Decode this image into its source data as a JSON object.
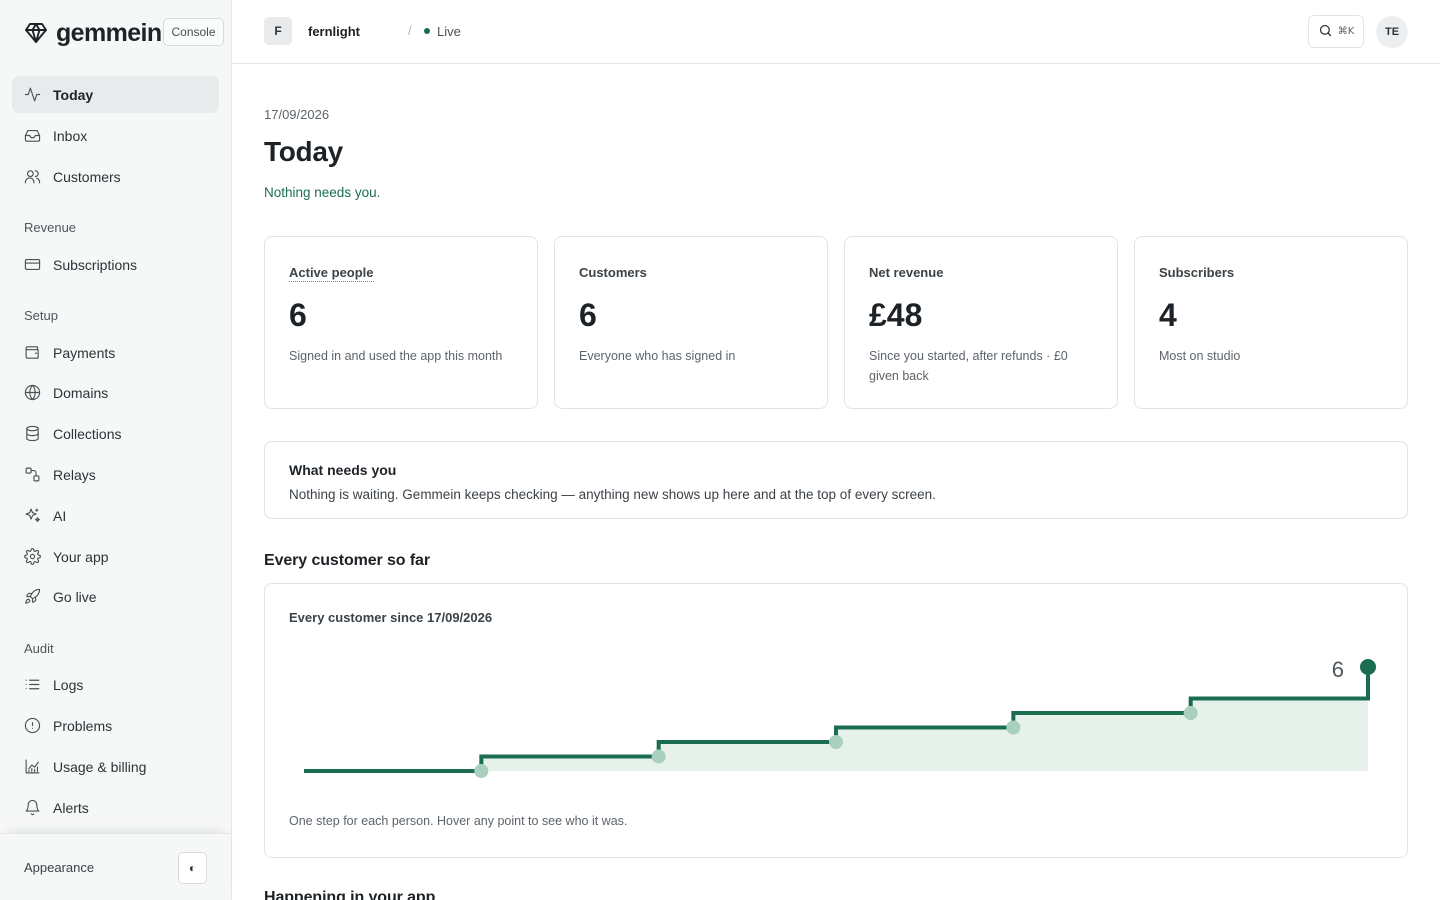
{
  "brand": {
    "name": "gemmein",
    "badge": "Console"
  },
  "sidebar": {
    "primary": [
      {
        "label": "Today",
        "icon": "activity-icon",
        "active": true
      },
      {
        "label": "Inbox",
        "icon": "inbox-icon"
      },
      {
        "label": "Customers",
        "icon": "users-icon"
      }
    ],
    "sections": [
      {
        "label": "Revenue",
        "items": [
          {
            "label": "Subscriptions",
            "icon": "credit-card-icon"
          }
        ]
      },
      {
        "label": "Setup",
        "items": [
          {
            "label": "Payments",
            "icon": "wallet-icon"
          },
          {
            "label": "Domains",
            "icon": "globe-icon"
          },
          {
            "label": "Collections",
            "icon": "database-icon"
          },
          {
            "label": "Relays",
            "icon": "route-icon"
          },
          {
            "label": "AI",
            "icon": "sparkles-icon"
          },
          {
            "label": "Your app",
            "icon": "gear-icon"
          },
          {
            "label": "Go live",
            "icon": "rocket-icon"
          }
        ]
      },
      {
        "label": "Audit",
        "items": [
          {
            "label": "Logs",
            "icon": "list-icon"
          },
          {
            "label": "Problems",
            "icon": "alert-circle-icon"
          },
          {
            "label": "Usage & billing",
            "icon": "chart-icon"
          },
          {
            "label": "Alerts",
            "icon": "bell-icon"
          }
        ]
      }
    ],
    "footer": {
      "appearance_label": "Appearance",
      "toggle_glyph": "◐"
    }
  },
  "topbar": {
    "workspace_initial": "F",
    "workspace_name": "fernlight",
    "separator": "/",
    "status": "Live",
    "search_shortcut": "⌘K",
    "user_initials": "TE"
  },
  "page": {
    "date": "17/09/2026",
    "title": "Today",
    "status_line": "Nothing needs you."
  },
  "stats": [
    {
      "label": "Active people",
      "value": "6",
      "desc": "Signed in and used the app this month"
    },
    {
      "label": "Customers",
      "value": "6",
      "desc": "Everyone who has signed in"
    },
    {
      "label": "Net revenue",
      "value": "£48",
      "desc": "Since you started, after refunds · £0 given back"
    },
    {
      "label": "Subscribers",
      "value": "4",
      "desc": "Most on studio"
    }
  ],
  "needs": {
    "title": "What needs you",
    "text": "Nothing is waiting. Gemmein keeps checking — anything new shows up here and at the top of every screen."
  },
  "sections": {
    "customers_heading": "Every customer so far",
    "next_heading": "Happening in your app"
  },
  "chart": {
    "title": "Every customer since 17/09/2026",
    "caption": "One step for each person. Hover any point to see who it was.",
    "end_label": "6"
  },
  "colors": {
    "accent": "#1a6e4f",
    "accent_fill": "#e6f1ec",
    "point_muted": "#a9cfbe"
  },
  "chart_data": {
    "type": "line",
    "style": "step",
    "title": "Every customer since 17/09/2026",
    "xlabel": "",
    "ylabel": "",
    "x": [
      0,
      1,
      2,
      3,
      4,
      5,
      6
    ],
    "values": [
      0,
      1,
      2,
      3,
      4,
      5,
      6
    ],
    "ylim": [
      0,
      6
    ],
    "grid": false,
    "end_label": "6"
  }
}
